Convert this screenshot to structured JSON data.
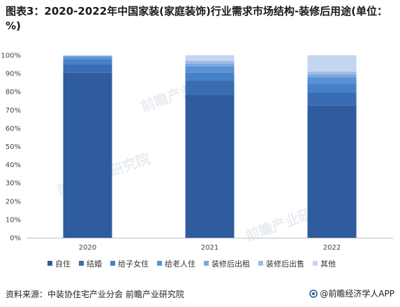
{
  "title": "图表3：2020-2022年中国家装(家庭装饰)行业需求市场结构-装修后用途(单位：%)",
  "source": "资料来源：中装协住宅产业分会 前瞻产业研究院",
  "brand": "@前瞻经济学人APP",
  "watermark": "前瞻产业研究院",
  "chart_data": {
    "type": "bar",
    "stacked": true,
    "categories": [
      "2020",
      "2021",
      "2022"
    ],
    "y_ticks": [
      "0%",
      "10%",
      "20%",
      "30%",
      "40%",
      "50%",
      "60%",
      "70%",
      "80%",
      "90%",
      "100%"
    ],
    "ylim": [
      0,
      100
    ],
    "grid": false,
    "legend_position": "bottom",
    "series": [
      {
        "name": "自住",
        "color": "#2e5c9e",
        "values": [
          90.5,
          78.5,
          72.5
        ]
      },
      {
        "name": "结婚",
        "color": "#3a6cb4",
        "values": [
          4.5,
          7.5,
          7.0
        ]
      },
      {
        "name": "给子女住",
        "color": "#4680c8",
        "values": [
          3.0,
          4.5,
          5.0
        ]
      },
      {
        "name": "给老人住",
        "color": "#5a92d6",
        "values": [
          1.2,
          3.5,
          3.5
        ]
      },
      {
        "name": "装修后出租",
        "color": "#7aa7df",
        "values": [
          0.5,
          1.5,
          1.5
        ]
      },
      {
        "name": "装修后出售",
        "color": "#9dbde8",
        "values": [
          0.2,
          1.5,
          1.5
        ]
      },
      {
        "name": "其他",
        "color": "#c4d5f0",
        "values": [
          0.1,
          3.0,
          9.0
        ]
      }
    ]
  }
}
